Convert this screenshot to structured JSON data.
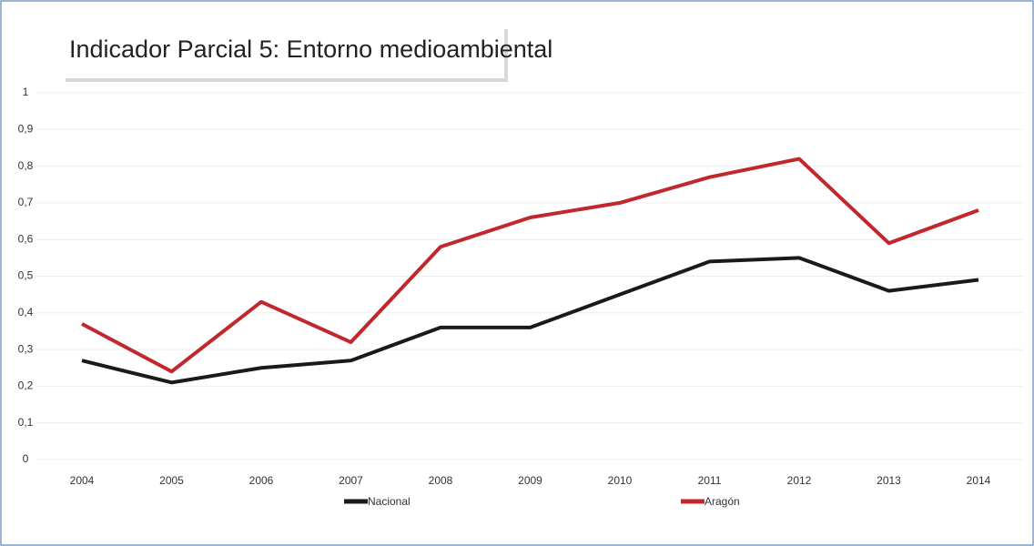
{
  "chart_data": {
    "type": "line",
    "title": "Indicador Parcial 5: Entorno medioambiental",
    "categories": [
      "2004",
      "2005",
      "2006",
      "2007",
      "2008",
      "2009",
      "2010",
      "2011",
      "2012",
      "2013",
      "2014"
    ],
    "series": [
      {
        "name": "Nacional",
        "color": "#1a1a1a",
        "values": [
          0.27,
          0.21,
          0.25,
          0.27,
          0.36,
          0.36,
          0.45,
          0.54,
          0.55,
          0.46,
          0.49
        ]
      },
      {
        "name": "Aragón",
        "color": "#c0282d",
        "values": [
          0.37,
          0.24,
          0.43,
          0.32,
          0.58,
          0.66,
          0.7,
          0.77,
          0.82,
          0.59,
          0.68
        ]
      }
    ],
    "ylim": [
      0,
      1
    ],
    "yticks": [
      0,
      {
        "value": 0.1,
        "label": "0,1"
      },
      {
        "value": 0.2,
        "label": "0,2"
      },
      {
        "value": 0.3,
        "label": "0,3"
      },
      {
        "value": 0.4,
        "label": "0,4"
      },
      {
        "value": 0.5,
        "label": "0,5"
      },
      {
        "value": 0.6,
        "label": "0,6"
      },
      {
        "value": 0.7,
        "label": "0,7"
      },
      {
        "value": 0.8,
        "label": "0,8"
      },
      {
        "value": 0.9,
        "label": "0,9"
      },
      1
    ],
    "grid": true
  }
}
